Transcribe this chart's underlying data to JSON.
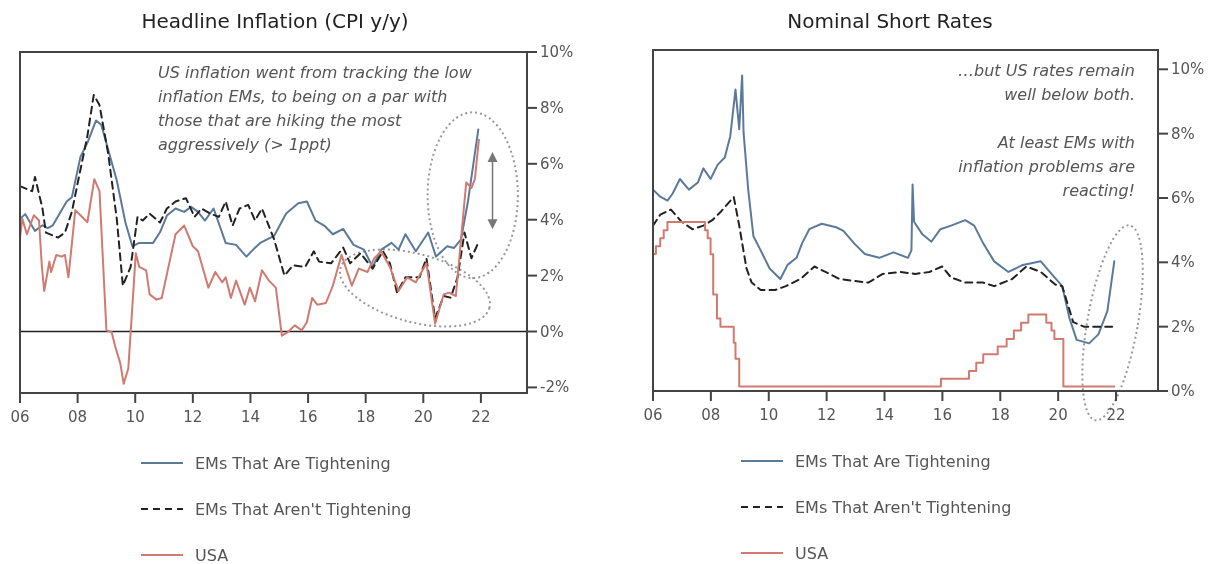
{
  "chart_data": [
    {
      "type": "line",
      "title": "Headline Inflation (CPI y/y)",
      "xlim": [
        2006,
        2023.6
      ],
      "ylim": [
        -2.2,
        10
      ],
      "xticks": [
        {
          "value": 2006,
          "label": "06"
        },
        {
          "value": 2008,
          "label": "08"
        },
        {
          "value": 2010,
          "label": "10"
        },
        {
          "value": 2012,
          "label": "12"
        },
        {
          "value": 2014,
          "label": "14"
        },
        {
          "value": 2016,
          "label": "16"
        },
        {
          "value": 2018,
          "label": "18"
        },
        {
          "value": 2020,
          "label": "20"
        },
        {
          "value": 2022,
          "label": "22"
        }
      ],
      "yticks": [
        {
          "value": 10,
          "label": "10%"
        },
        {
          "value": 8,
          "label": "8%"
        },
        {
          "value": 6,
          "label": "6%"
        },
        {
          "value": 4,
          "label": "4%"
        },
        {
          "value": 2,
          "label": "2%"
        },
        {
          "value": 0,
          "label": "0%"
        },
        {
          "value": -2,
          "label": "-2%"
        }
      ],
      "grid": false,
      "legend": "bottom",
      "ref_lines": [
        {
          "axis": "y",
          "value": 0,
          "color": "#222222"
        }
      ],
      "annotations": [
        "US inflation went from tracking the low inflation EMs, to being on a par with those that are hiking the most aggressively (> 1ppt)"
      ],
      "series": [
        {
          "name": "EMs That Are Tightening",
          "color": "#5b7a9b",
          "line_style": "solid",
          "x": [
            2006.0,
            2006.18,
            2006.52,
            2006.78,
            2006.96,
            2007.14,
            2007.62,
            2007.8,
            2008.1,
            2008.34,
            2008.64,
            2008.82,
            2009.36,
            2009.66,
            2009.9,
            2010.14,
            2010.62,
            2010.86,
            2011.1,
            2011.4,
            2011.7,
            2011.94,
            2012.18,
            2012.42,
            2012.72,
            2013.14,
            2013.5,
            2013.86,
            2014.16,
            2014.34,
            2014.82,
            2015.24,
            2015.66,
            2015.96,
            2016.26,
            2016.56,
            2016.86,
            2017.22,
            2017.58,
            2017.94,
            2018.24,
            2018.54,
            2018.9,
            2019.14,
            2019.38,
            2019.74,
            2020.17,
            2020.44,
            2020.83,
            2021.07,
            2021.31,
            2021.55,
            2021.91
          ],
          "values": [
            4.03,
            4.2,
            3.6,
            3.8,
            3.7,
            3.8,
            4.65,
            4.8,
            6.25,
            6.75,
            7.55,
            7.4,
            5.4,
            3.9,
            3.05,
            3.17,
            3.17,
            3.55,
            4.15,
            4.4,
            4.28,
            4.46,
            4.28,
            3.97,
            4.4,
            3.17,
            3.1,
            2.68,
            3.0,
            3.17,
            3.42,
            4.22,
            4.59,
            4.65,
            3.97,
            3.79,
            3.48,
            3.67,
            3.1,
            2.93,
            2.31,
            2.93,
            3.17,
            2.93,
            3.48,
            2.87,
            3.54,
            2.68,
            3.05,
            2.99,
            3.3,
            4.65,
            7.23
          ]
        },
        {
          "name": "EMs That Aren't Tightening",
          "color": "#222222",
          "line_style": "dashed",
          "x": [
            2006.0,
            2006.42,
            2006.52,
            2006.78,
            2006.9,
            2007.32,
            2007.56,
            2007.8,
            2008.04,
            2008.34,
            2008.56,
            2008.76,
            2009.06,
            2009.36,
            2009.57,
            2009.84,
            2010.08,
            2010.26,
            2010.5,
            2010.86,
            2011.1,
            2011.4,
            2011.76,
            2012.06,
            2012.3,
            2012.6,
            2012.9,
            2013.14,
            2013.38,
            2013.62,
            2013.92,
            2014.16,
            2014.4,
            2014.82,
            2015.18,
            2015.48,
            2015.9,
            2016.2,
            2016.38,
            2016.8,
            2017.22,
            2017.46,
            2017.82,
            2018.24,
            2018.6,
            2018.84,
            2019.09,
            2019.38,
            2019.87,
            2020.11,
            2020.41,
            2020.71,
            2020.95,
            2021.19,
            2021.43,
            2021.67,
            2021.93
          ],
          "values": [
            5.2,
            5.02,
            5.53,
            4.4,
            3.54,
            3.36,
            3.54,
            4.28,
            5.5,
            7.0,
            8.46,
            8.1,
            6.37,
            4.03,
            1.64,
            2.31,
            4.1,
            3.97,
            4.22,
            3.9,
            4.4,
            4.65,
            4.77,
            4.1,
            4.4,
            4.22,
            4.1,
            4.65,
            3.79,
            4.4,
            4.53,
            3.97,
            4.4,
            3.3,
            2.0,
            2.37,
            2.31,
            2.87,
            2.5,
            2.44,
            3.0,
            2.44,
            2.8,
            2.25,
            2.87,
            2.44,
            1.39,
            1.94,
            1.94,
            2.62,
            0.47,
            1.27,
            1.21,
            1.94,
            3.54,
            2.62,
            3.23
          ]
        },
        {
          "name": "USA",
          "color": "#d07a70",
          "line_style": "solid",
          "x": [
            2006.0,
            2006.08,
            2006.24,
            2006.48,
            2006.66,
            2006.76,
            2006.84,
            2007.02,
            2007.08,
            2007.26,
            2007.44,
            2007.56,
            2007.68,
            2007.92,
            2008.1,
            2008.34,
            2008.58,
            2008.76,
            2009.0,
            2009.18,
            2009.3,
            2009.48,
            2009.6,
            2009.76,
            2010.02,
            2010.14,
            2010.38,
            2010.5,
            2010.74,
            2010.92,
            2011.4,
            2011.7,
            2012.0,
            2012.18,
            2012.54,
            2012.78,
            2013.02,
            2013.14,
            2013.32,
            2013.5,
            2013.8,
            2013.98,
            2014.16,
            2014.4,
            2014.64,
            2014.88,
            2015.09,
            2015.3,
            2015.54,
            2015.78,
            2015.96,
            2016.14,
            2016.32,
            2016.62,
            2016.86,
            2017.16,
            2017.52,
            2017.76,
            2018.06,
            2018.3,
            2018.54,
            2018.84,
            2019.14,
            2019.44,
            2019.74,
            2020.11,
            2020.41,
            2020.71,
            2020.89,
            2021.13,
            2021.49,
            2021.67,
            2021.79,
            2021.93
          ],
          "values": [
            3.36,
            4.03,
            3.48,
            4.16,
            3.97,
            2.31,
            1.45,
            2.5,
            2.13,
            2.74,
            2.68,
            2.74,
            1.94,
            4.34,
            4.16,
            3.91,
            5.45,
            5.02,
            0.04,
            -0.02,
            -0.52,
            -1.13,
            -1.87,
            -1.32,
            2.8,
            2.31,
            2.19,
            1.33,
            1.14,
            1.2,
            3.48,
            3.79,
            3.05,
            2.87,
            1.57,
            2.13,
            1.76,
            1.94,
            1.2,
            1.82,
            0.96,
            1.57,
            1.08,
            2.19,
            1.82,
            1.57,
            -0.15,
            -0.02,
            0.22,
            0.04,
            0.34,
            1.2,
            0.96,
            1.02,
            1.64,
            2.74,
            1.64,
            2.25,
            2.13,
            2.62,
            2.87,
            2.31,
            1.45,
            1.94,
            1.76,
            2.44,
            0.28,
            1.33,
            1.39,
            1.27,
            5.33,
            5.14,
            5.45,
            6.86
          ]
        }
      ]
    },
    {
      "type": "line",
      "title": "Nominal Short Rates",
      "xlim": [
        2006,
        2023.45
      ],
      "ylim": [
        0,
        10.6
      ],
      "xticks": [
        {
          "value": 2006,
          "label": "06"
        },
        {
          "value": 2008,
          "label": "08"
        },
        {
          "value": 2010,
          "label": "10"
        },
        {
          "value": 2012,
          "label": "12"
        },
        {
          "value": 2014,
          "label": "14"
        },
        {
          "value": 2016,
          "label": "16"
        },
        {
          "value": 2018,
          "label": "18"
        },
        {
          "value": 2020,
          "label": "20"
        },
        {
          "value": 2022,
          "label": "22"
        }
      ],
      "yticks": [
        {
          "value": 10,
          "label": "10%"
        },
        {
          "value": 8,
          "label": "8%"
        },
        {
          "value": 6,
          "label": "6%"
        },
        {
          "value": 4,
          "label": "4%"
        },
        {
          "value": 2,
          "label": "2%"
        },
        {
          "value": 0,
          "label": "0%"
        }
      ],
      "grid": false,
      "legend": "bottom",
      "annotations": [
        "…but US rates remain well below both.",
        "At least EMs with inflation problems are reacting!"
      ],
      "series": [
        {
          "name": "EMs That Are Tightening",
          "color": "#5b7a9b",
          "line_style": "solid",
          "x": [
            2006.0,
            2006.25,
            2006.5,
            2006.68,
            2006.93,
            2007.24,
            2007.55,
            2007.74,
            2007.99,
            2008.23,
            2008.48,
            2008.67,
            2008.85,
            2008.98,
            2009.08,
            2009.13,
            2009.29,
            2009.47,
            2009.72,
            2010.03,
            2010.4,
            2010.65,
            2010.96,
            2011.15,
            2011.4,
            2011.83,
            2012.33,
            2012.58,
            2012.95,
            2013.32,
            2013.82,
            2014.31,
            2014.81,
            2014.93,
            2014.97,
            2015.02,
            2015.31,
            2015.62,
            2015.93,
            2016.3,
            2016.79,
            2017.1,
            2017.41,
            2017.79,
            2018.28,
            2018.78,
            2019.4,
            2019.71,
            2020.14,
            2020.39,
            2020.64,
            2021.07,
            2021.39,
            2021.7,
            2021.94
          ],
          "values": [
            6.26,
            6.04,
            5.92,
            6.14,
            6.59,
            6.26,
            6.48,
            6.92,
            6.59,
            7.03,
            7.26,
            7.92,
            9.37,
            8.14,
            9.81,
            8.03,
            6.26,
            4.81,
            4.37,
            3.81,
            3.48,
            3.92,
            4.14,
            4.59,
            5.03,
            5.2,
            5.09,
            4.98,
            4.59,
            4.26,
            4.14,
            4.31,
            4.14,
            4.37,
            6.42,
            5.26,
            4.87,
            4.64,
            5.03,
            5.14,
            5.31,
            5.14,
            4.59,
            4.03,
            3.7,
            3.92,
            4.03,
            3.7,
            3.26,
            2.26,
            1.59,
            1.48,
            1.76,
            2.48,
            4.03
          ]
        },
        {
          "name": "EMs That Aren't Tightening",
          "color": "#222222",
          "line_style": "dashed",
          "x": [
            2006.0,
            2006.25,
            2006.62,
            2006.99,
            2007.36,
            2007.74,
            2008.05,
            2008.36,
            2008.79,
            2008.98,
            2009.23,
            2009.41,
            2009.72,
            2010.22,
            2010.59,
            2011.09,
            2011.58,
            2011.96,
            2012.45,
            2012.95,
            2013.44,
            2013.94,
            2014.56,
            2015.06,
            2015.55,
            2015.99,
            2016.3,
            2016.79,
            2017.41,
            2017.79,
            2018.41,
            2018.9,
            2019.4,
            2019.9,
            2020.14,
            2020.52,
            2020.89,
            2021.94
          ],
          "values": [
            5.14,
            5.48,
            5.64,
            5.26,
            5.03,
            5.14,
            5.31,
            5.59,
            6.03,
            5.14,
            3.81,
            3.37,
            3.14,
            3.14,
            3.26,
            3.48,
            3.87,
            3.7,
            3.48,
            3.42,
            3.37,
            3.64,
            3.7,
            3.64,
            3.7,
            3.87,
            3.53,
            3.37,
            3.37,
            3.26,
            3.48,
            3.87,
            3.7,
            3.31,
            3.26,
            2.14,
            2.0,
            2.0
          ]
        },
        {
          "name": "USA",
          "color": "#d07a70",
          "type": "step",
          "line_style": "solid",
          "x": [
            2006.0,
            2006.1,
            2006.25,
            2006.37,
            2006.5,
            2007.8,
            2007.89,
            2007.99,
            2008.08,
            2008.21,
            2008.33,
            2008.79,
            2008.85,
            2008.98,
            2015.95,
            2016.92,
            2017.17,
            2017.41,
            2017.91,
            2018.22,
            2018.47,
            2018.72,
            2018.97,
            2019.59,
            2019.77,
            2019.87,
            2020.18,
            2021.94
          ],
          "values": [
            4.26,
            4.5,
            4.75,
            5.0,
            5.25,
            5.0,
            4.75,
            4.25,
            3.0,
            2.25,
            2.0,
            1.5,
            1.0,
            0.14,
            0.38,
            0.62,
            0.88,
            1.14,
            1.38,
            1.62,
            1.88,
            2.12,
            2.38,
            2.12,
            1.88,
            1.62,
            0.14,
            0.14
          ]
        }
      ]
    }
  ]
}
